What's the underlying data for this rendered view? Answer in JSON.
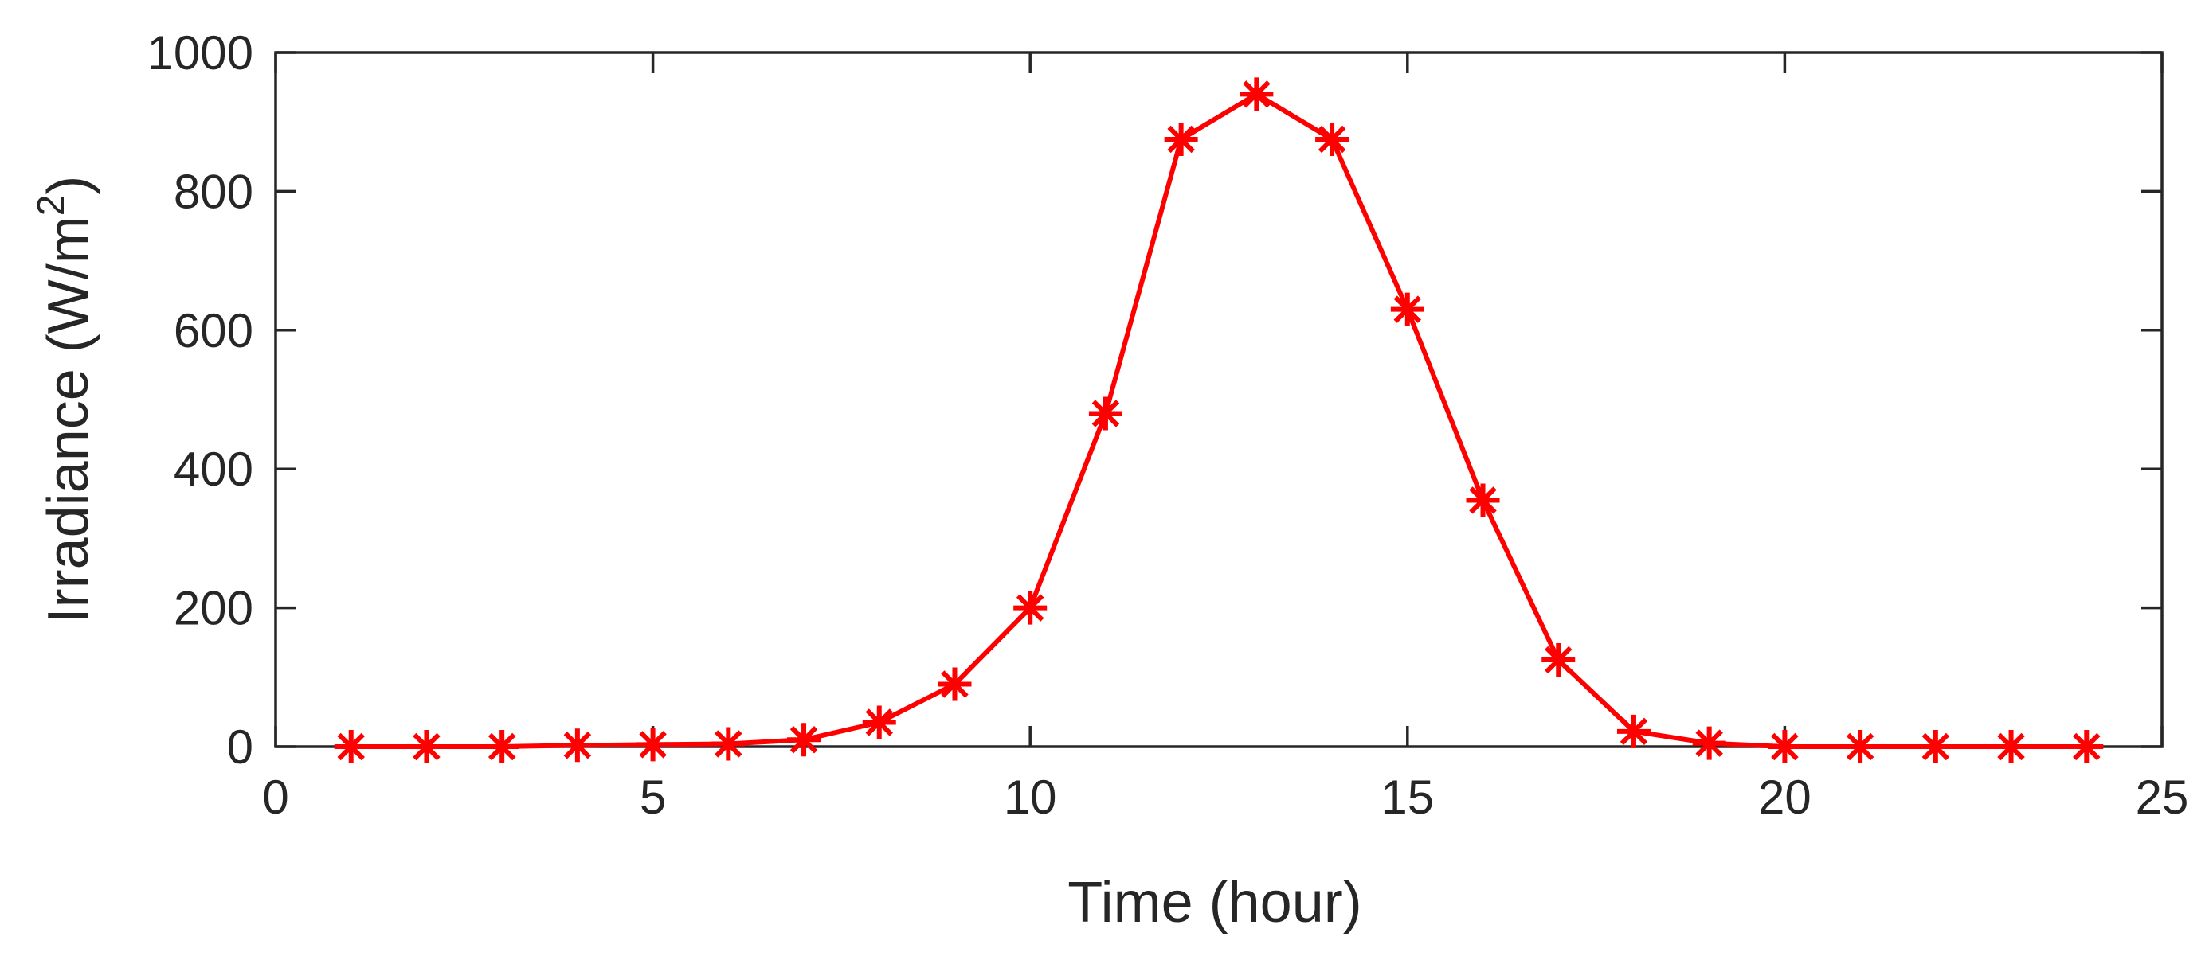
{
  "chart_data": {
    "type": "line",
    "title": "",
    "xlabel": "Time (hour)",
    "ylabel": {
      "base": "Irradiance (W/m",
      "superscript": "2",
      "suffix": ")"
    },
    "xlim": [
      0,
      25
    ],
    "ylim": [
      0,
      1000
    ],
    "xticks": [
      0,
      5,
      10,
      15,
      20,
      25
    ],
    "yticks": [
      0,
      200,
      400,
      600,
      800,
      1000
    ],
    "grid": false,
    "legend": "none",
    "series": [
      {
        "color": "#ff0000",
        "marker": "asterisk",
        "x": [
          1,
          2,
          3,
          4,
          5,
          6,
          7,
          8,
          9,
          10,
          11,
          12,
          13,
          14,
          15,
          16,
          17,
          18,
          19,
          20,
          21,
          22,
          23,
          24
        ],
        "y": [
          0,
          0,
          0,
          2,
          3,
          4,
          10,
          35,
          90,
          200,
          480,
          875,
          940,
          875,
          630,
          355,
          125,
          22,
          5,
          0,
          0,
          0,
          0,
          0
        ]
      }
    ]
  }
}
